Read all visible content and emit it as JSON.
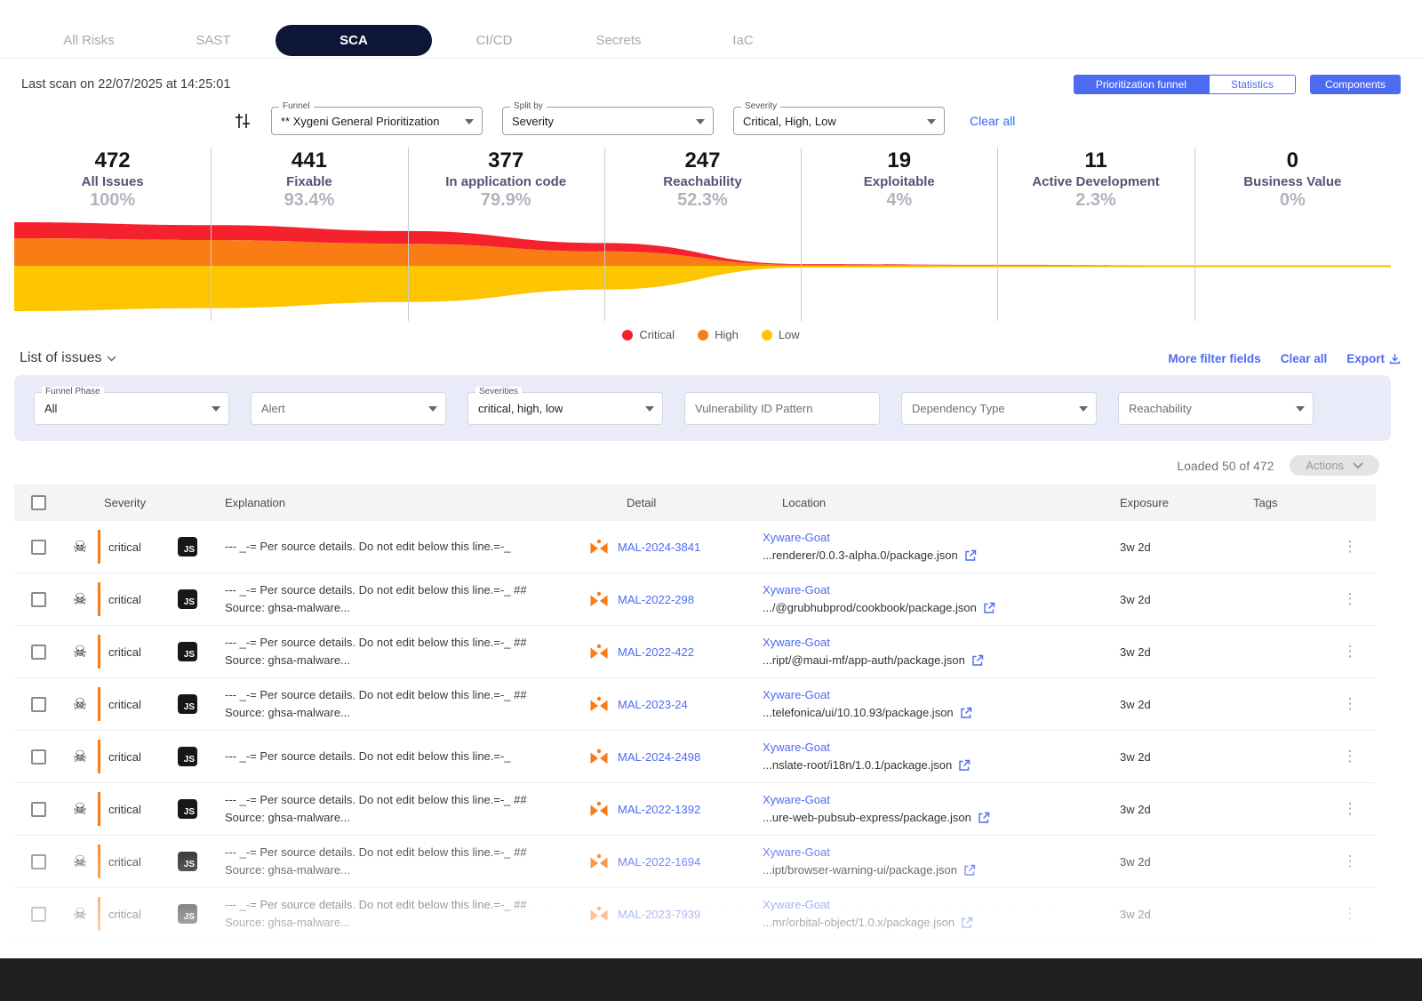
{
  "tabs": [
    {
      "label": "All Risks"
    },
    {
      "label": "SAST"
    },
    {
      "label": "SCA"
    },
    {
      "label": "CI/CD"
    },
    {
      "label": "Secrets"
    },
    {
      "label": "IaC"
    }
  ],
  "scan": {
    "last_scan": "Last scan on 22/07/2025 at 14:25:01"
  },
  "view_toggle": {
    "prioritization_funnel": "Prioritization funnel",
    "statistics": "Statistics",
    "components": "Components"
  },
  "funnel_controls": {
    "funnel": {
      "label": "Funnel",
      "value": "** Xygeni General Prioritization"
    },
    "split_by": {
      "label": "Split by",
      "value": "Severity"
    },
    "severity": {
      "label": "Severity",
      "value": "Critical, High, Low"
    },
    "clear_all": "Clear all"
  },
  "chart_data": {
    "type": "area",
    "title": "Prioritization funnel",
    "stages": [
      {
        "count": "472",
        "label": "All Issues",
        "pct_label": "100%",
        "pct": 100
      },
      {
        "count": "441",
        "label": "Fixable",
        "pct_label": "93.4%",
        "pct": 93.4
      },
      {
        "count": "377",
        "label": "In application code",
        "pct_label": "79.9%",
        "pct": 79.9
      },
      {
        "count": "247",
        "label": "Reachability",
        "pct_label": "52.3%",
        "pct": 52.3
      },
      {
        "count": "19",
        "label": "Exploitable",
        "pct_label": "4%",
        "pct": 4
      },
      {
        "count": "11",
        "label": "Active Development",
        "pct_label": "2.3%",
        "pct": 2.3
      },
      {
        "count": "0",
        "label": "Business Value",
        "pct_label": "0%",
        "pct": 0
      }
    ],
    "series": [
      {
        "name": "Critical",
        "color": "#f5222d",
        "fraction": 0.18
      },
      {
        "name": "High",
        "color": "#fa7c15",
        "fraction": 0.31
      },
      {
        "name": "Low",
        "color": "#fdc500",
        "fraction": 0.51
      }
    ],
    "legend_position": "bottom-center",
    "grid": true
  },
  "list_section": {
    "title": "List of issues",
    "more_filter_fields": "More filter fields",
    "clear_all": "Clear all",
    "export": "Export",
    "filters": {
      "funnel_phase": {
        "label": "Funnel Phase",
        "value": "All"
      },
      "alert": {
        "value": "Alert"
      },
      "severities": {
        "label": "Severities",
        "value": "critical, high, low"
      },
      "vulnerability_id_pattern": {
        "placeholder": "Vulnerability ID Pattern"
      },
      "dependency_type": {
        "value": "Dependency Type"
      },
      "reachability": {
        "value": "Reachability"
      }
    },
    "loaded_text": "Loaded 50 of 472",
    "actions_label": "Actions"
  },
  "table": {
    "headers": {
      "severity": "Severity",
      "explanation": "Explanation",
      "detail": "Detail",
      "location": "Location",
      "exposure": "Exposure",
      "tags": "Tags"
    },
    "rows": [
      {
        "severity": "critical",
        "language": "JS",
        "explanation": "--- _-= Per source details. Do not edit below this line.=-_",
        "detail": "MAL-2024-3841",
        "location": "Xyware-Goat",
        "path": "...renderer/0.0.3-alpha.0/package.json",
        "exposure": "3w 2d",
        "tags": ""
      },
      {
        "severity": "critical",
        "language": "JS",
        "explanation": "--- _-= Per source details. Do not edit below this line.=-_ ## Source: ghsa-malware...",
        "detail": "MAL-2022-298",
        "location": "Xyware-Goat",
        "path": ".../@grubhubprod/cookbook/package.json",
        "exposure": "3w 2d",
        "tags": ""
      },
      {
        "severity": "critical",
        "language": "JS",
        "explanation": "--- _-= Per source details. Do not edit below this line.=-_ ## Source: ghsa-malware...",
        "detail": "MAL-2022-422",
        "location": "Xyware-Goat",
        "path": "...ript/@maui-mf/app-auth/package.json",
        "exposure": "3w 2d",
        "tags": ""
      },
      {
        "severity": "critical",
        "language": "JS",
        "explanation": "--- _-= Per source details. Do not edit below this line.=-_ ## Source: ghsa-malware...",
        "detail": "MAL-2023-24",
        "location": "Xyware-Goat",
        "path": "...telefonica/ui/10.10.93/package.json",
        "exposure": "3w 2d",
        "tags": ""
      },
      {
        "severity": "critical",
        "language": "JS",
        "explanation": "--- _-= Per source details. Do not edit below this line.=-_",
        "detail": "MAL-2024-2498",
        "location": "Xyware-Goat",
        "path": "...nslate-root/i18n/1.0.1/package.json",
        "exposure": "3w 2d",
        "tags": ""
      },
      {
        "severity": "critical",
        "language": "JS",
        "explanation": "--- _-= Per source details. Do not edit below this line.=-_ ## Source: ghsa-malware...",
        "detail": "MAL-2022-1392",
        "location": "Xyware-Goat",
        "path": "...ure-web-pubsub-express/package.json",
        "exposure": "3w 2d",
        "tags": ""
      },
      {
        "severity": "critical",
        "language": "JS",
        "explanation": "--- _-= Per source details. Do not edit below this line.=-_ ## Source: ghsa-malware...",
        "detail": "MAL-2022-1694",
        "location": "Xyware-Goat",
        "path": "...ipt/browser-warning-ui/package.json",
        "exposure": "3w 2d",
        "tags": ""
      },
      {
        "severity": "critical",
        "language": "JS",
        "explanation": "--- _-= Per source details. Do not edit below this line.=-_ ## Source: ghsa-malware...",
        "detail": "MAL-2023-7939",
        "location": "Xyware-Goat",
        "path": "...mr/orbital-object/1.0.x/package.json",
        "exposure": "3w 2d",
        "tags": ""
      }
    ]
  }
}
